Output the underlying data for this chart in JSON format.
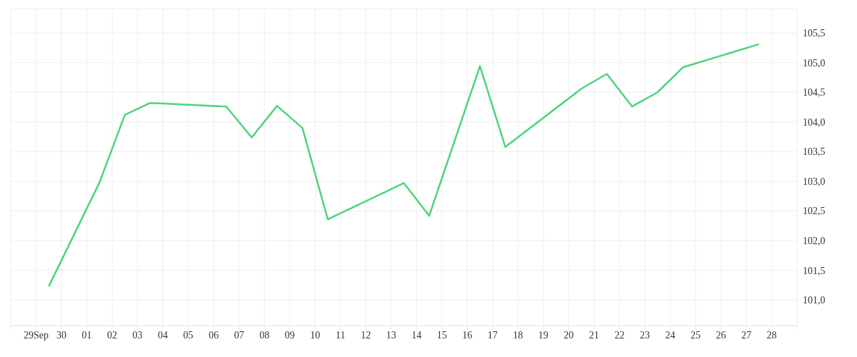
{
  "chart_data": {
    "type": "line",
    "x": [
      "--09-29T12:00",
      "--10-01T12:00",
      "--10-02T12:00",
      "--10-03T12:00",
      "--10-06T12:00",
      "--10-07T12:00",
      "--10-08T12:00",
      "--10-09T12:00",
      "--10-10T12:00",
      "--10-13T12:00",
      "--10-14T12:00",
      "--10-16T12:00",
      "--10-17T12:00",
      "--10-20T12:00",
      "--10-21T12:00",
      "--10-22T12:00",
      "--10-23T12:00",
      "--10-24T12:00",
      "--10-27T12:00"
    ],
    "series": [
      {
        "color": "#4cd47a",
        "values": [
          101.23,
          102.98,
          104.12,
          104.32,
          104.26,
          103.74,
          104.27,
          103.9,
          102.36,
          102.97,
          102.42,
          104.94,
          103.58,
          104.56,
          104.81,
          104.26,
          104.5,
          104.92,
          105.31
        ]
      }
    ],
    "xlim": [
      "--09-28",
      "--10-29"
    ],
    "xticks": [
      {
        "value": "--09-28",
        "label": null
      },
      {
        "value": "--09-29",
        "label": "29Sep"
      },
      {
        "value": "--09-30",
        "label": "30"
      },
      {
        "value": "--10-01",
        "label": "01"
      },
      {
        "value": "--10-02",
        "label": "02"
      },
      {
        "value": "--10-03",
        "label": "03"
      },
      {
        "value": "--10-04",
        "label": "04"
      },
      {
        "value": "--10-05",
        "label": "05"
      },
      {
        "value": "--10-06",
        "label": "06"
      },
      {
        "value": "--10-07",
        "label": "07"
      },
      {
        "value": "--10-08",
        "label": "08"
      },
      {
        "value": "--10-09",
        "label": "09"
      },
      {
        "value": "--10-10",
        "label": "10"
      },
      {
        "value": "--10-11",
        "label": "11"
      },
      {
        "value": "--10-12",
        "label": "12"
      },
      {
        "value": "--10-13",
        "label": "13"
      },
      {
        "value": "--10-14",
        "label": "14"
      },
      {
        "value": "--10-15",
        "label": "15"
      },
      {
        "value": "--10-16",
        "label": "16"
      },
      {
        "value": "--10-17",
        "label": "17"
      },
      {
        "value": "--10-18",
        "label": "18"
      },
      {
        "value": "--10-19",
        "label": "19"
      },
      {
        "value": "--10-20",
        "label": "20"
      },
      {
        "value": "--10-21",
        "label": "21"
      },
      {
        "value": "--10-22",
        "label": "22"
      },
      {
        "value": "--10-23",
        "label": "23"
      },
      {
        "value": "--10-24",
        "label": "24"
      },
      {
        "value": "--10-25",
        "label": "25"
      },
      {
        "value": "--10-26",
        "label": "26"
      },
      {
        "value": "--10-27",
        "label": "27"
      },
      {
        "value": "--10-28",
        "label": "28"
      },
      {
        "value": "--10-29",
        "label": null
      }
    ],
    "ylim": [
      100.57,
      105.91
    ],
    "yticks": [
      {
        "value": 101,
        "label": "101,0"
      },
      {
        "value": 101.5,
        "label": "101,5"
      },
      {
        "value": 102,
        "label": "102,0"
      },
      {
        "value": 102.5,
        "label": "102,5"
      },
      {
        "value": 103,
        "label": "103,0"
      },
      {
        "value": 103.5,
        "label": "103,5"
      },
      {
        "value": 104,
        "label": "104,0"
      },
      {
        "value": 104.5,
        "label": "104,5"
      },
      {
        "value": 105,
        "label": "105,0"
      },
      {
        "value": 105.5,
        "label": "105,5"
      }
    ],
    "grid": true,
    "legend": false,
    "marker": "none",
    "line_style": "solid"
  }
}
